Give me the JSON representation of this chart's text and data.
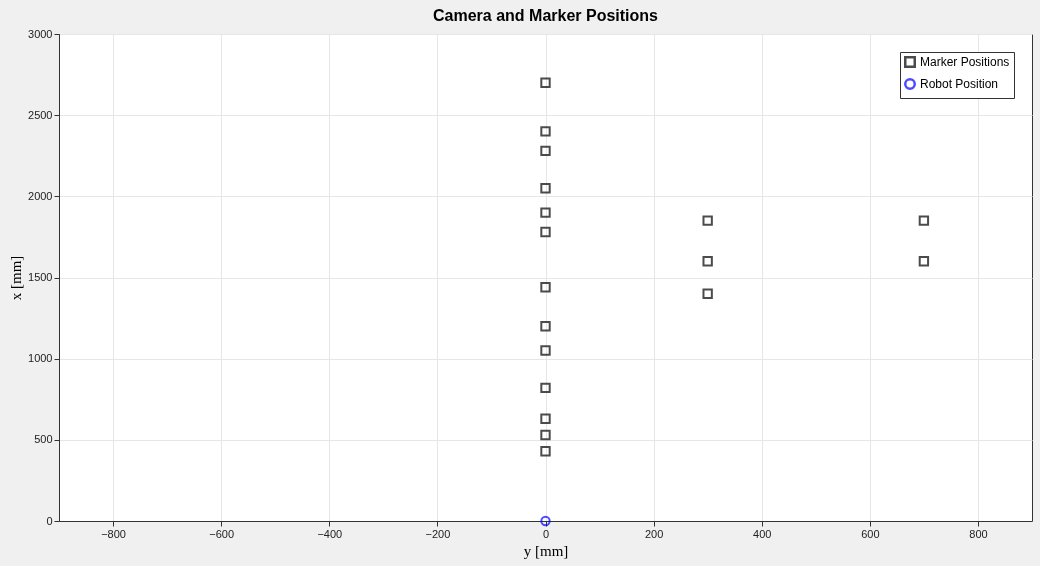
{
  "chart_data": {
    "type": "scatter",
    "title": "Camera and Marker Positions",
    "xlabel": "y [mm]",
    "ylabel": "x [mm]",
    "series": [
      {
        "name": "Marker Positions",
        "color": "#000000",
        "marker": "square",
        "x": [
          0,
          0,
          0,
          0,
          0,
          0,
          0,
          0,
          0,
          0,
          0,
          0,
          0,
          300,
          300,
          300,
          700,
          700
        ],
        "values": [
          2700,
          2400,
          2280,
          2050,
          1900,
          1780,
          1440,
          1200,
          1050,
          820,
          630,
          530,
          430,
          1850,
          1600,
          1400,
          1850,
          1600
        ]
      },
      {
        "name": "Robot Position",
        "color": "#0000ff",
        "marker": "circle",
        "x": [
          0
        ],
        "values": [
          0
        ]
      }
    ],
    "xlim": [
      -900,
      900
    ],
    "ylim": [
      0,
      3000
    ],
    "xticks": [
      -800,
      -600,
      -400,
      -200,
      0,
      200,
      400,
      600,
      800
    ],
    "yticks": [
      0,
      500,
      1000,
      1500,
      2000,
      2500,
      3000
    ],
    "grid": true,
    "legend": "top right"
  }
}
